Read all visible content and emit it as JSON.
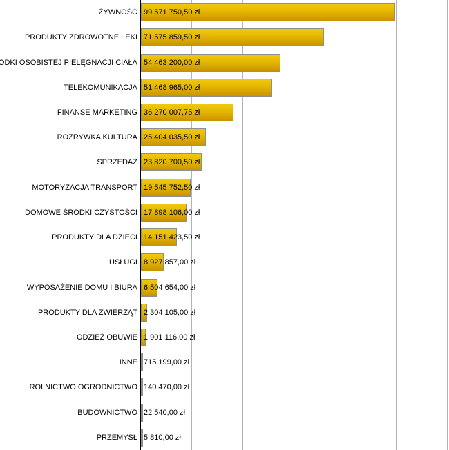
{
  "chart_data": {
    "type": "bar",
    "orientation": "horizontal",
    "title": "",
    "xlabel": "",
    "ylabel": "",
    "currency_suffix": "zł",
    "xlim": [
      0,
      120000000
    ],
    "grid_step": 20000000,
    "grid": true,
    "legend_position": "none",
    "categories": [
      "ŻYWNOŚĆ",
      "PRODUKTY ZDROWOTNE LEKI",
      "ŚRODKI OSOBISTEJ PIELĘGNACJI CIAŁA",
      "TELEKOMUNIKACJA",
      "FINANSE MARKETING",
      "ROZRYWKA KULTURA",
      "SPRZEDAŻ",
      "MOTORYZACJA TRANSPORT",
      "DOMOWE ŚRODKI CZYSTOŚCI",
      "PRODUKTY DLA DZIECI",
      "USŁUGI",
      "WYPOSAŻENIE DOMU I BIURA",
      "PRODUKTY DLA ZWIERZĄT",
      "ODZIEŻ OBUWIE",
      "INNE",
      "ROLNICTWO OGRODNICTWO",
      "BUDOWNICTWO",
      "PRZEMYSŁ"
    ],
    "values": [
      99571750.5,
      71575859.5,
      54463200.0,
      51468965.0,
      36270007.75,
      25404035.5,
      23820700.5,
      19545752.5,
      17898106.0,
      14151423.5,
      8927857.0,
      6504654.0,
      2304105.0,
      1901116.0,
      715199.0,
      140470.0,
      22540.0,
      5810.0
    ],
    "value_labels": [
      "99 571 750,50 zł",
      "71 575 859,50 zł",
      "54 463 200,00 zł",
      "51 468 965,00 zł",
      "36 270 007,75 zł",
      "25 404 035,50 zł",
      "23 820 700,50 zł",
      "19 545 752,50 zł",
      "17 898 106,00 zł",
      "14 151 423,50 zł",
      "8 927 857,00 zł",
      "6 504 654,00 zł",
      "2 304 105,00 zł",
      "1 901 116,00 zł",
      "715 199,00 zł",
      "140 470,00 zł",
      "22 540,00 zł",
      "5 810,00 zł"
    ],
    "colors": {
      "bar_gradient_top": "#F0C90F",
      "bar_gradient_mid": "#E5B600",
      "bar_gradient_bottom": "#C99300",
      "bar_border": "#8F8F8F",
      "gridline": "#B4B4B4",
      "axis": "#000000",
      "text": "#000000",
      "background": "#FFFFFF"
    }
  }
}
